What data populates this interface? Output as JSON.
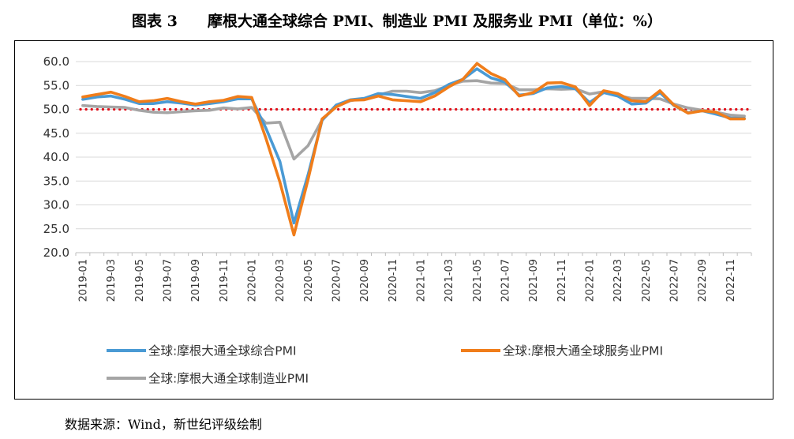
{
  "figure": {
    "title": "图表 3　　摩根大通全球综合 PMI、制造业 PMI 及服务业 PMI（单位：%）",
    "source": "数据来源：Wind，新世纪评级绘制"
  },
  "chart_data": {
    "type": "line",
    "ylim": [
      20,
      60
    ],
    "yticks": [
      "20.0",
      "25.0",
      "30.0",
      "35.0",
      "40.0",
      "45.0",
      "50.0",
      "55.0",
      "60.0"
    ],
    "xtick_labels": [
      "2019-01",
      "2019-03",
      "2019-05",
      "2019-07",
      "2019-09",
      "2019-11",
      "2020-01",
      "2020-03",
      "2020-05",
      "2020-07",
      "2020-09",
      "2020-11",
      "2021-01",
      "2021-03",
      "2021-05",
      "2021-07",
      "2021-09",
      "2021-11",
      "2022-01",
      "2022-03",
      "2022-05",
      "2022-07",
      "2022-09",
      "2022-11"
    ],
    "reference_line": {
      "value": 50,
      "color": "#e0101a"
    },
    "grid": true,
    "legend_position": "bottom",
    "series": [
      {
        "name": "全球:摩根大通全球综合PMI",
        "color": "#4a9ad4",
        "values": [
          52.1,
          52.6,
          52.8,
          52.1,
          51.2,
          51.2,
          51.6,
          51.3,
          50.9,
          51.2,
          51.6,
          52.2,
          52.2,
          46.1,
          39.1,
          26.2,
          36.3,
          47.7,
          50.9,
          52.0,
          52.3,
          53.3,
          53.1,
          52.7,
          52.3,
          53.5,
          55.2,
          56.3,
          58.5,
          56.6,
          55.7,
          53.0,
          53.3,
          54.5,
          54.8,
          54.3,
          51.4,
          53.5,
          52.8,
          51.1,
          51.3,
          53.5,
          50.8,
          49.3,
          49.7,
          49.0,
          48.2,
          48.1
        ]
      },
      {
        "name": "全球:摩根大通全球服务业PMI",
        "color": "#f07d1a",
        "values": [
          52.6,
          53.1,
          53.6,
          52.7,
          51.6,
          51.8,
          52.3,
          51.6,
          51.1,
          51.6,
          51.9,
          52.7,
          52.5,
          44.0,
          34.8,
          23.7,
          35.3,
          48.0,
          50.5,
          51.9,
          52.0,
          52.8,
          52.0,
          51.8,
          51.6,
          52.8,
          54.7,
          56.3,
          59.6,
          57.5,
          56.2,
          52.8,
          53.5,
          55.5,
          55.6,
          54.7,
          50.8,
          53.9,
          53.3,
          51.8,
          51.6,
          53.9,
          50.9,
          49.2,
          49.7,
          49.4,
          48.0,
          48.0
        ]
      },
      {
        "name": "全球:摩根大通全球制造业PMI",
        "color": "#a5a5a5",
        "values": [
          50.8,
          50.6,
          50.5,
          50.4,
          49.8,
          49.4,
          49.3,
          49.5,
          49.7,
          49.8,
          50.3,
          50.1,
          50.4,
          47.1,
          47.3,
          39.6,
          42.4,
          47.8,
          50.6,
          51.8,
          52.3,
          53.0,
          53.8,
          53.8,
          53.5,
          53.9,
          55.0,
          55.9,
          56.0,
          55.5,
          55.4,
          54.1,
          54.1,
          54.3,
          54.2,
          54.3,
          53.2,
          53.7,
          52.9,
          52.3,
          52.3,
          52.2,
          51.1,
          50.3,
          49.8,
          49.4,
          48.8,
          48.6
        ]
      }
    ]
  }
}
